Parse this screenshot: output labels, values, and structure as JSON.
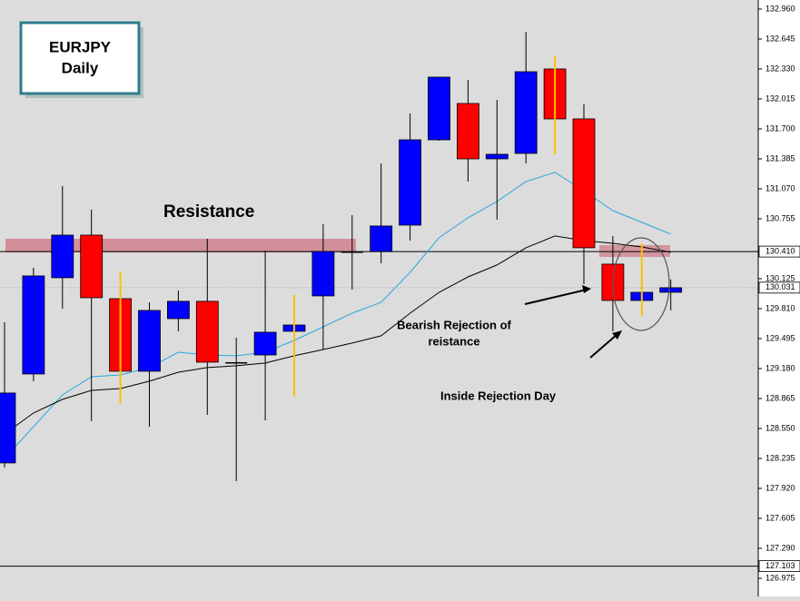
{
  "chart_data": {
    "type": "candlestick",
    "title": "EURJPY",
    "subtitle": "Daily",
    "ylim": [
      126.784,
      133.055
    ],
    "yticks": [
      {
        "value": 132.96,
        "label": "132.960"
      },
      132.645,
      {
        "value": 132.33,
        "label": "132.330"
      },
      {
        "value": 132.015,
        "label": "132.015"
      },
      {
        "value": 131.7,
        "label": "131.700"
      },
      131.385,
      {
        "value": 131.07,
        "label": "131.070"
      },
      {
        "value": 130.755,
        "label": "130.755"
      },
      130.125,
      {
        "value": 129.81,
        "label": "129.810"
      },
      129.495,
      {
        "value": 129.18,
        "label": "129.180"
      },
      128.865,
      {
        "value": 128.55,
        "label": "128.550"
      },
      128.235,
      {
        "value": 127.92,
        "label": "127.920"
      },
      127.605,
      {
        "value": 127.29,
        "label": "127.290"
      },
      126.975
    ],
    "price_lines": [
      {
        "value": 130.41,
        "label": "130.410",
        "color": "#000000",
        "dashed": false
      },
      {
        "value": 130.031,
        "label": "130.031",
        "color": "#a0a0a0",
        "dashed": true
      },
      {
        "value": 127.103,
        "label": "127.103",
        "color": "#000000",
        "dashed": false
      }
    ],
    "up_color": "#0000ff",
    "down_color": "#ff0000",
    "doji_color": "#000000",
    "open": [
      128.188,
      129.123,
      130.135,
      130.583,
      129.915,
      129.152,
      129.705,
      129.887,
      129.247,
      129.323,
      129.572,
      129.944,
      130.411,
      130.411,
      130.688,
      131.585,
      131.967,
      131.385,
      131.442,
      132.33,
      131.805,
      130.278,
      129.896,
      129.982
    ],
    "high": [
      129.667,
      130.24,
      131.099,
      130.851,
      130.202,
      129.877,
      130.001,
      130.545,
      129.505,
      130.421,
      129.953,
      130.698,
      130.793,
      131.337,
      131.862,
      132.244,
      132.215,
      132.005,
      132.721,
      132.464,
      131.958,
      130.574,
      130.497,
      130.116
    ],
    "low": [
      128.14,
      129.047,
      129.81,
      128.627,
      128.808,
      128.569,
      129.572,
      128.693,
      127.997,
      128.636,
      128.884,
      129.38,
      130.01,
      130.287,
      130.526,
      131.576,
      131.146,
      130.745,
      131.337,
      131.433,
      130.068,
      129.572,
      129.734,
      129.791
    ],
    "close": [
      128.923,
      130.154,
      130.583,
      129.925,
      129.152,
      129.791,
      129.887,
      129.247,
      129.247,
      129.562,
      129.638,
      130.411,
      130.411,
      130.679,
      131.585,
      132.244,
      131.385,
      131.433,
      132.301,
      131.805,
      130.45,
      129.896,
      129.982,
      130.03
    ],
    "wick_colors": [
      "#000000",
      "#000000",
      "#000000",
      "#000000",
      "#ffc000",
      "#000000",
      "#000000",
      "#000000",
      "#000000",
      "#000000",
      "#ffc000",
      "#000000",
      "#000000",
      "#000000",
      "#000000",
      "#000000",
      "#000000",
      "#000000",
      "#000000",
      "#ffc000",
      "#000000",
      "#000000",
      "#ffc000",
      "#000000"
    ],
    "series": [
      {
        "name": null,
        "color": "#29a8e0",
        "values": [
          128.235,
          128.569,
          128.903,
          129.094,
          129.113,
          129.19,
          129.352,
          129.323,
          129.314,
          129.352,
          129.476,
          129.619,
          129.762,
          129.877,
          130.192,
          130.555,
          130.765,
          130.937,
          131.146,
          131.242,
          131.051,
          130.841,
          130.717,
          130.593
        ]
      },
      {
        "name": null,
        "color": "#000000",
        "values": [
          128.493,
          128.713,
          128.856,
          128.951,
          128.97,
          129.047,
          129.142,
          129.19,
          129.209,
          129.238,
          129.314,
          129.38,
          129.448,
          129.524,
          129.762,
          129.982,
          130.144,
          130.269,
          130.45,
          130.574,
          130.526,
          130.497,
          130.459,
          130.402
        ]
      }
    ],
    "annotations": [
      {
        "text": "Resistance"
      },
      {
        "lines": [
          "Bearish Rejection of",
          "reistance"
        ]
      },
      {
        "text": "Inside Rejection Day"
      }
    ]
  }
}
